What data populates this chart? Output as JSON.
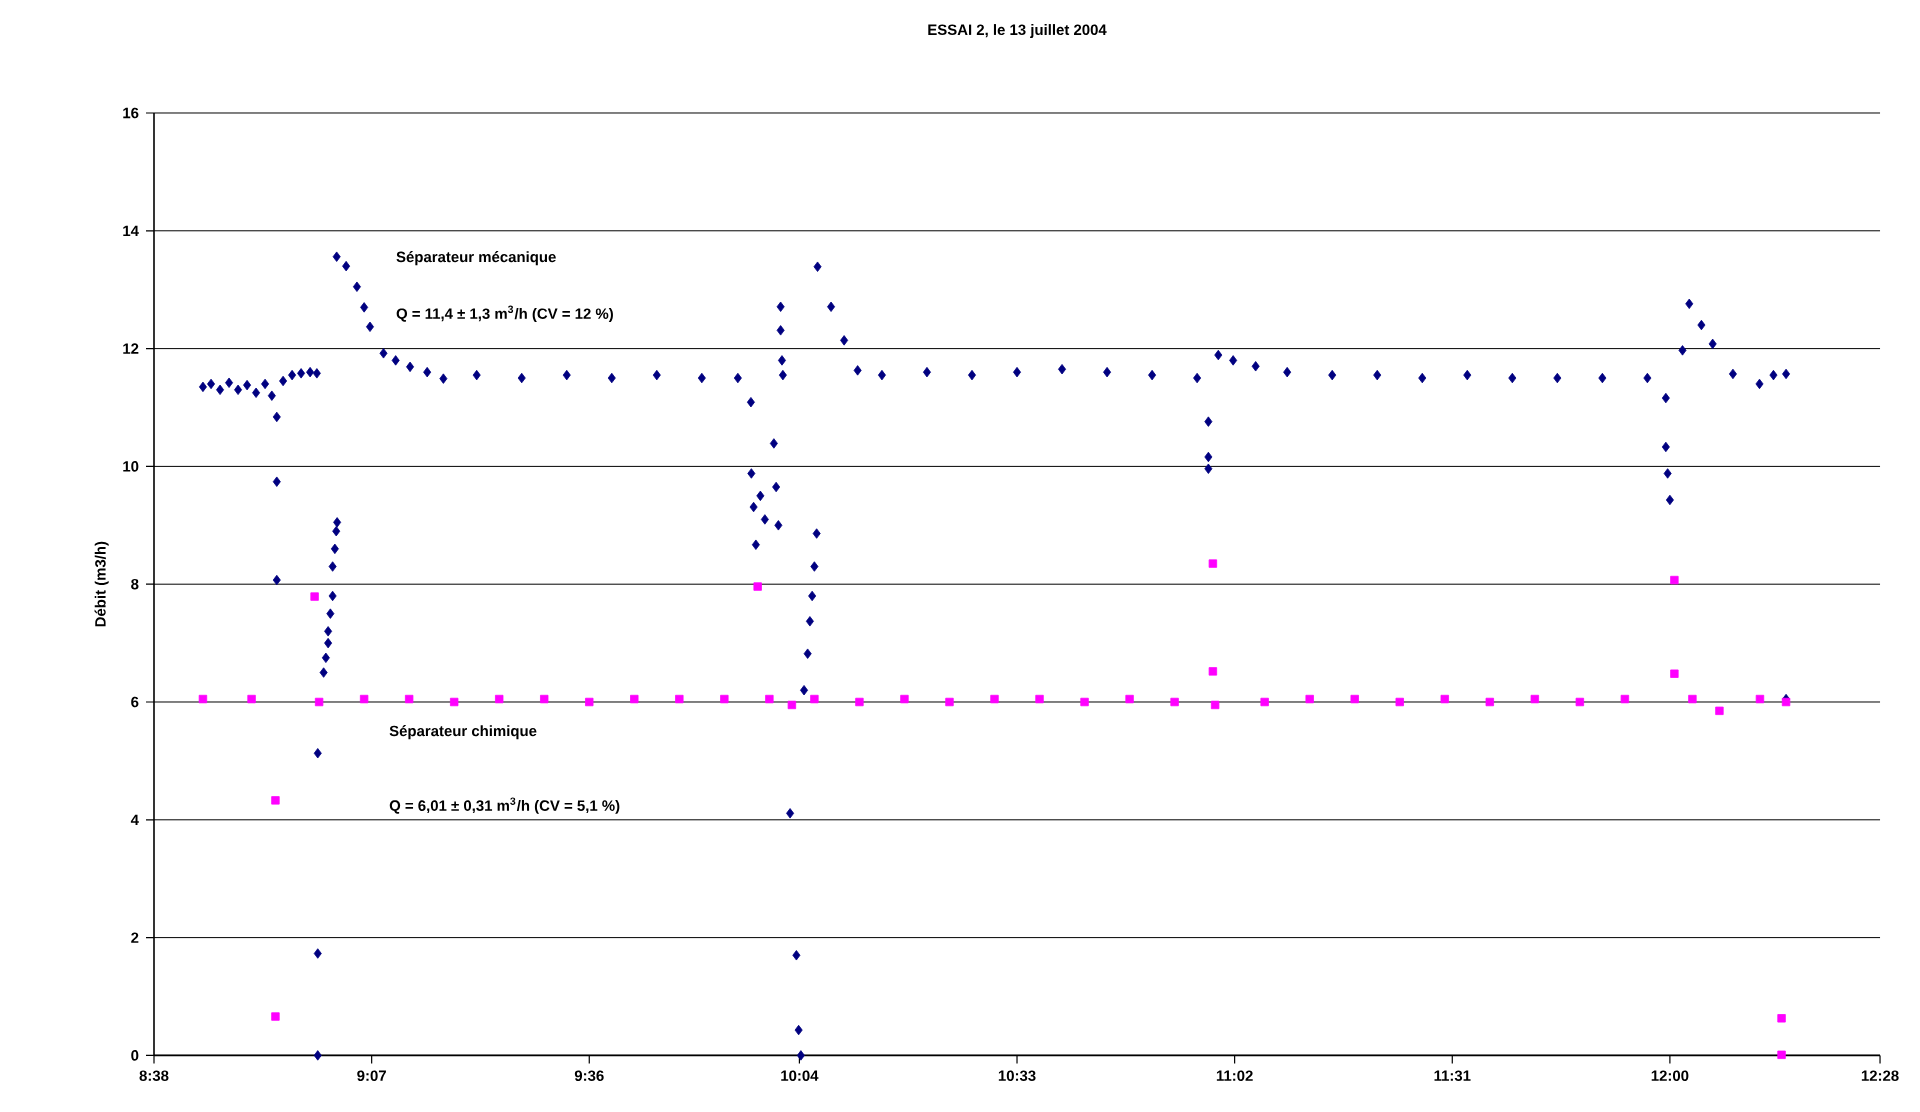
{
  "chart_data": {
    "type": "scatter",
    "title": "ESSAI 2, le 13 juillet 2004",
    "ylabel": "Débit (m3/h)",
    "xlim": [
      8.6333,
      12.4667
    ],
    "ylim": [
      0,
      16
    ],
    "xticks": [
      {
        "value": 8.6333,
        "label": "8:38"
      },
      {
        "value": 9.1167,
        "label": "9:07"
      },
      {
        "value": 9.6,
        "label": "9:36"
      },
      {
        "value": 10.0667,
        "label": "10:04"
      },
      {
        "value": 10.55,
        "label": "10:33"
      },
      {
        "value": 11.0333,
        "label": "11:02"
      },
      {
        "value": 11.5167,
        "label": "11:31"
      },
      {
        "value": 12.0,
        "label": "12:00"
      },
      {
        "value": 12.4667,
        "label": "12:28"
      }
    ],
    "yticks": [
      0,
      2,
      4,
      6,
      8,
      10,
      12,
      14,
      16
    ],
    "grid": "y",
    "annotations": [
      "Séparateur mécanique",
      "Q = 11,4 ± 1,3 m$^{3}$/h (CV = 12 %)",
      "Séparateur chimique",
      "Q = 6,01 ± 0,31 m$^{3}$/h (CV = 5,1 %)"
    ],
    "series": [
      {
        "color": "#000080",
        "marker": "diamond",
        "x": [
          8.742,
          8.76,
          8.78,
          8.8,
          8.82,
          8.84,
          8.86,
          8.88,
          8.895,
          8.906,
          8.906,
          8.906,
          8.92,
          8.94,
          8.96,
          8.98,
          8.995,
          8.997,
          8.997,
          8.997,
          9.01,
          9.015,
          9.02,
          9.02,
          9.025,
          9.03,
          9.03,
          9.035,
          9.038,
          9.04,
          9.039,
          9.06,
          9.084,
          9.1,
          9.113,
          9.143,
          9.17,
          9.202,
          9.24,
          9.276,
          9.35,
          9.45,
          9.55,
          9.65,
          9.75,
          9.85,
          9.93,
          9.959,
          9.96,
          9.965,
          9.97,
          9.98,
          9.99,
          10.01,
          10.015,
          10.02,
          10.025,
          10.025,
          10.028,
          10.03,
          10.046,
          10.06,
          10.065,
          10.07,
          10.077,
          10.085,
          10.09,
          10.095,
          10.1,
          10.105,
          10.107,
          10.137,
          10.166,
          10.196,
          10.25,
          10.35,
          10.45,
          10.55,
          10.65,
          10.75,
          10.85,
          10.95,
          10.975,
          10.975,
          10.975,
          10.997,
          11.03,
          11.08,
          11.15,
          11.25,
          11.35,
          11.45,
          11.55,
          11.65,
          11.75,
          11.85,
          11.95,
          11.991,
          11.991,
          11.995,
          12.0,
          12.028,
          12.043,
          12.07,
          12.095,
          12.14,
          12.199,
          12.23,
          12.258,
          12.258
        ],
        "values": [
          11.35,
          11.4,
          11.3,
          11.42,
          11.3,
          11.38,
          11.25,
          11.4,
          11.2,
          10.84,
          9.74,
          8.07,
          11.45,
          11.55,
          11.58,
          11.6,
          11.58,
          5.13,
          1.73,
          0,
          6.5,
          6.75,
          7.0,
          7.2,
          7.5,
          7.8,
          8.3,
          8.6,
          8.9,
          9.05,
          13.56,
          13.4,
          13.05,
          12.7,
          12.37,
          11.92,
          11.8,
          11.69,
          11.6,
          11.49,
          11.55,
          11.5,
          11.55,
          11.5,
          11.55,
          11.5,
          11.5,
          11.09,
          9.88,
          9.31,
          8.67,
          9.5,
          9.1,
          10.39,
          9.65,
          9.0,
          12.71,
          12.31,
          11.8,
          11.55,
          4.11,
          1.7,
          0.43,
          0,
          6.2,
          6.82,
          7.37,
          7.8,
          8.3,
          8.86,
          13.39,
          12.71,
          12.14,
          11.63,
          11.55,
          11.6,
          11.55,
          11.6,
          11.65,
          11.6,
          11.55,
          11.5,
          10.76,
          10.16,
          9.96,
          11.89,
          11.8,
          11.7,
          11.6,
          11.55,
          11.55,
          11.5,
          11.55,
          11.5,
          11.5,
          11.5,
          11.5,
          11.16,
          10.33,
          9.88,
          9.43,
          11.97,
          12.76,
          12.4,
          12.08,
          11.57,
          11.4,
          11.55,
          11.57,
          6.05
        ]
      },
      {
        "color": "#ff00ff",
        "marker": "square",
        "x": [
          8.742,
          8.85,
          8.903,
          8.903,
          8.99,
          9.0,
          9.1,
          9.2,
          9.3,
          9.4,
          9.5,
          9.6,
          9.7,
          9.8,
          9.9,
          9.974,
          10.0,
          10.05,
          10.1,
          10.2,
          10.3,
          10.4,
          10.5,
          10.6,
          10.7,
          10.8,
          10.9,
          10.985,
          10.985,
          10.99,
          11.1,
          11.2,
          11.3,
          11.4,
          11.5,
          11.6,
          11.7,
          11.8,
          11.9,
          12.01,
          12.01,
          12.05,
          12.11,
          12.2,
          12.258,
          12.248,
          12.248
        ],
        "values": [
          6.05,
          6.05,
          4.33,
          0.66,
          7.79,
          6.0,
          6.05,
          6.05,
          6.0,
          6.05,
          6.05,
          6.0,
          6.05,
          6.05,
          6.05,
          7.96,
          6.05,
          5.95,
          6.05,
          6.0,
          6.05,
          6.0,
          6.05,
          6.05,
          6.0,
          6.05,
          6.0,
          8.35,
          6.52,
          5.95,
          6.0,
          6.05,
          6.05,
          6.0,
          6.05,
          6.0,
          6.05,
          6.0,
          6.05,
          8.07,
          6.48,
          6.05,
          5.85,
          6.05,
          6.0,
          0.63,
          0.01
        ]
      }
    ]
  }
}
